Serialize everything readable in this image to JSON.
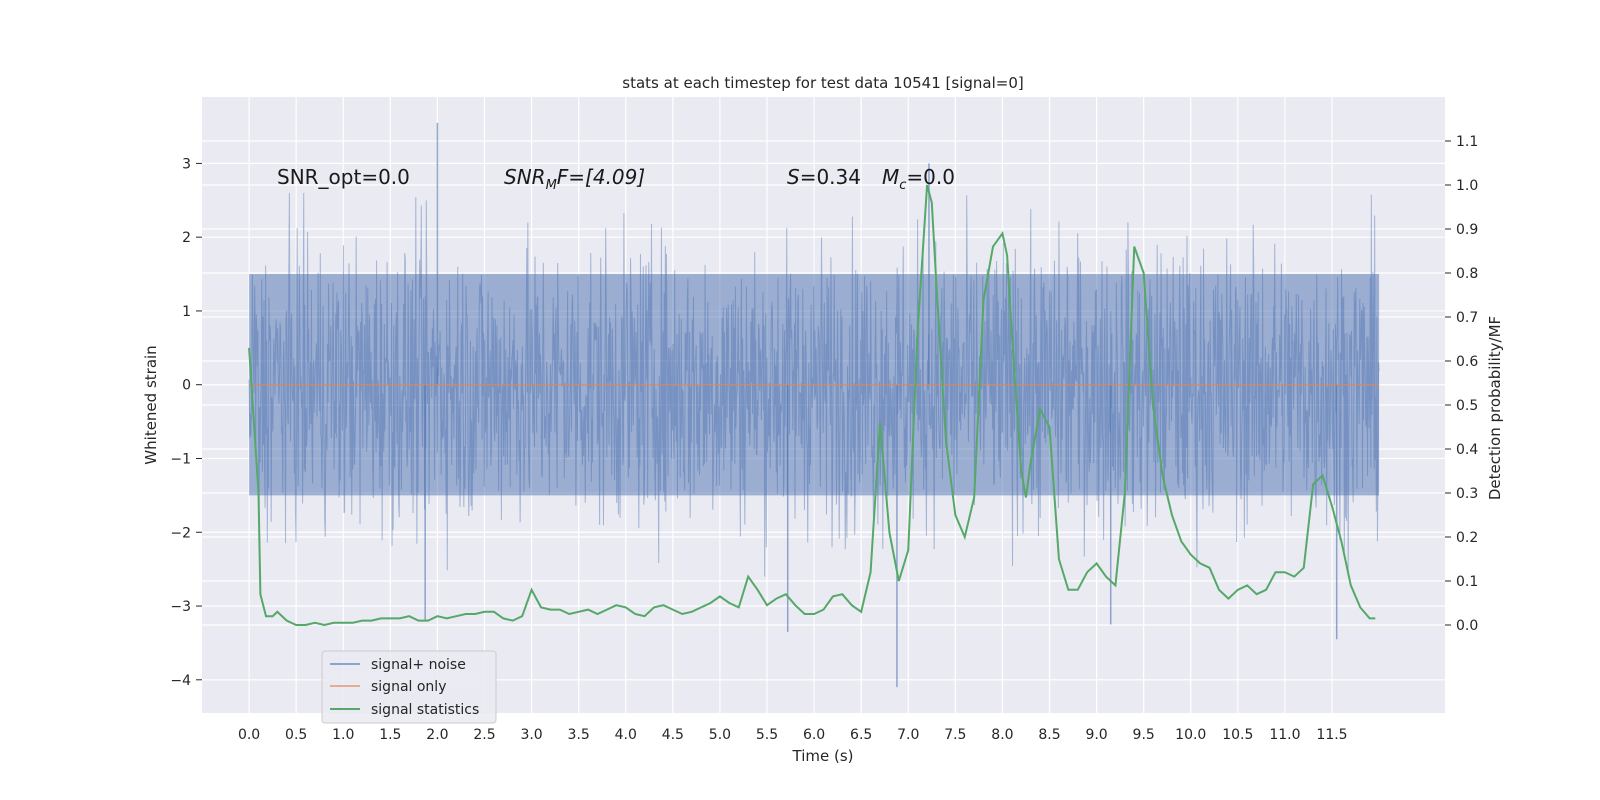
{
  "chart_data": {
    "type": "line",
    "title": "stats at each timestep for test data 10541 [signal=0]",
    "xlabel": "Time (s)",
    "ylabel": "Whitened strain",
    "y2label": "Detection probability/MF",
    "xlim": [
      -0.5,
      12.7
    ],
    "ylim": [
      -4.45,
      3.9
    ],
    "y2lim": [
      -0.2,
      1.2
    ],
    "x_ticks": [
      0.0,
      0.5,
      1.0,
      1.5,
      2.0,
      2.5,
      3.0,
      3.5,
      4.0,
      4.5,
      5.0,
      5.5,
      6.0,
      6.5,
      7.0,
      7.5,
      8.0,
      8.5,
      9.0,
      9.5,
      10.0,
      10.5,
      11.0,
      11.5
    ],
    "x_tick_labels": [
      "0.0",
      "0.5",
      "1.0",
      "1.5",
      "2.0",
      "2.5",
      "3.0",
      "3.5",
      "4.0",
      "4.5",
      "5.0",
      "5.5",
      "6.0",
      "6.5",
      "7.0",
      "7.5",
      "8.0",
      "8.5",
      "9.0",
      "9.5",
      "10.0",
      "10.5",
      "11.0",
      "11.5"
    ],
    "y_ticks": [
      3,
      2,
      1,
      0,
      -1,
      -2,
      -3,
      -4
    ],
    "y_tick_labels": [
      "3",
      "2",
      "1",
      "0",
      "−1",
      "−2",
      "−3",
      "−4"
    ],
    "y2_ticks": [
      1.1,
      1.0,
      0.9,
      0.8,
      0.7,
      0.6,
      0.5,
      0.4,
      0.3,
      0.2,
      0.1,
      0.0
    ],
    "y2_tick_labels": [
      "1.1",
      "1.0",
      "0.9",
      "0.8",
      "0.7",
      "0.6",
      "0.5",
      "0.4",
      "0.3",
      "0.2",
      "0.1",
      "0.0"
    ],
    "grid": true,
    "annotations": {
      "snr_opt": "SNR_opt=0.0",
      "snr_mf_main": "SNR",
      "snr_mf_sub": "M",
      "snr_mf_rest": "F=[4.09]",
      "s_var": "S",
      "s_val": "=0.34",
      "mc_var": "M",
      "mc_sub": "c",
      "mc_val": "=0.0"
    },
    "legend": {
      "placement": "lower-left",
      "entries": [
        "signal+ noise",
        "signal only",
        "signal statistics"
      ]
    },
    "colors": {
      "noise": "#4c72b0",
      "signal": "#dd8452",
      "stats": "#55a868",
      "background": "#eaeaf2",
      "grid": "#ffffff"
    },
    "series": [
      {
        "name": "signal+ noise",
        "axis": "left",
        "x_range": [
          0.0,
          12.0
        ],
        "samples": 2048,
        "band_core": [
          -1.5,
          1.5
        ],
        "spikes": [
          {
            "x": 2.0,
            "y": 3.55
          },
          {
            "x": 6.88,
            "y": -4.1
          },
          {
            "x": 7.22,
            "y": 3.0
          },
          {
            "x": 11.55,
            "y": -3.45
          },
          {
            "x": 1.87,
            "y": -3.2
          },
          {
            "x": 5.72,
            "y": -3.35
          },
          {
            "x": 9.15,
            "y": -3.25
          }
        ]
      },
      {
        "name": "signal only",
        "axis": "left",
        "x": [
          0.0,
          12.0
        ],
        "y": [
          0.0,
          0.0
        ]
      },
      {
        "name": "signal statistics",
        "axis": "right",
        "x": [
          0.0,
          0.1,
          0.12,
          0.18,
          0.25,
          0.3,
          0.4,
          0.5,
          0.6,
          0.7,
          0.8,
          0.9,
          1.0,
          1.1,
          1.2,
          1.3,
          1.4,
          1.5,
          1.6,
          1.7,
          1.8,
          1.9,
          2.0,
          2.1,
          2.2,
          2.3,
          2.4,
          2.5,
          2.6,
          2.7,
          2.8,
          2.9,
          3.0,
          3.1,
          3.2,
          3.3,
          3.4,
          3.5,
          3.6,
          3.7,
          3.8,
          3.9,
          4.0,
          4.1,
          4.2,
          4.3,
          4.4,
          4.5,
          4.6,
          4.7,
          4.8,
          4.9,
          5.0,
          5.1,
          5.2,
          5.3,
          5.4,
          5.5,
          5.6,
          5.7,
          5.8,
          5.9,
          6.0,
          6.1,
          6.2,
          6.3,
          6.4,
          6.5,
          6.6,
          6.7,
          6.8,
          6.9,
          7.0,
          7.1,
          7.2,
          7.25,
          7.3,
          7.4,
          7.5,
          7.6,
          7.7,
          7.8,
          7.9,
          8.0,
          8.05,
          8.1,
          8.2,
          8.25,
          8.3,
          8.4,
          8.5,
          8.6,
          8.7,
          8.8,
          8.9,
          9.0,
          9.1,
          9.2,
          9.3,
          9.4,
          9.5,
          9.6,
          9.7,
          9.8,
          9.9,
          10.0,
          10.1,
          10.2,
          10.3,
          10.4,
          10.5,
          10.6,
          10.7,
          10.8,
          10.9,
          11.0,
          11.1,
          11.2,
          11.3,
          11.4,
          11.5,
          11.6,
          11.7,
          11.8,
          11.9,
          11.96
        ],
        "y": [
          0.63,
          0.3,
          0.07,
          0.02,
          0.02,
          0.03,
          0.01,
          0.0,
          0.0,
          0.005,
          0.0,
          0.005,
          0.005,
          0.005,
          0.01,
          0.01,
          0.015,
          0.015,
          0.015,
          0.02,
          0.01,
          0.01,
          0.02,
          0.015,
          0.02,
          0.025,
          0.025,
          0.03,
          0.03,
          0.015,
          0.01,
          0.02,
          0.08,
          0.04,
          0.035,
          0.035,
          0.025,
          0.03,
          0.035,
          0.025,
          0.035,
          0.045,
          0.04,
          0.025,
          0.02,
          0.04,
          0.045,
          0.035,
          0.025,
          0.03,
          0.04,
          0.05,
          0.065,
          0.05,
          0.04,
          0.11,
          0.08,
          0.045,
          0.06,
          0.07,
          0.045,
          0.025,
          0.025,
          0.035,
          0.065,
          0.07,
          0.045,
          0.03,
          0.12,
          0.46,
          0.21,
          0.1,
          0.17,
          0.67,
          1.0,
          0.96,
          0.77,
          0.42,
          0.25,
          0.2,
          0.29,
          0.74,
          0.86,
          0.89,
          0.84,
          0.66,
          0.35,
          0.29,
          0.37,
          0.49,
          0.45,
          0.15,
          0.08,
          0.08,
          0.12,
          0.14,
          0.11,
          0.09,
          0.3,
          0.86,
          0.8,
          0.5,
          0.34,
          0.25,
          0.19,
          0.16,
          0.14,
          0.13,
          0.08,
          0.06,
          0.08,
          0.09,
          0.07,
          0.08,
          0.12,
          0.12,
          0.11,
          0.13,
          0.32,
          0.34,
          0.27,
          0.19,
          0.09,
          0.04,
          0.015,
          0.015
        ]
      }
    ]
  }
}
